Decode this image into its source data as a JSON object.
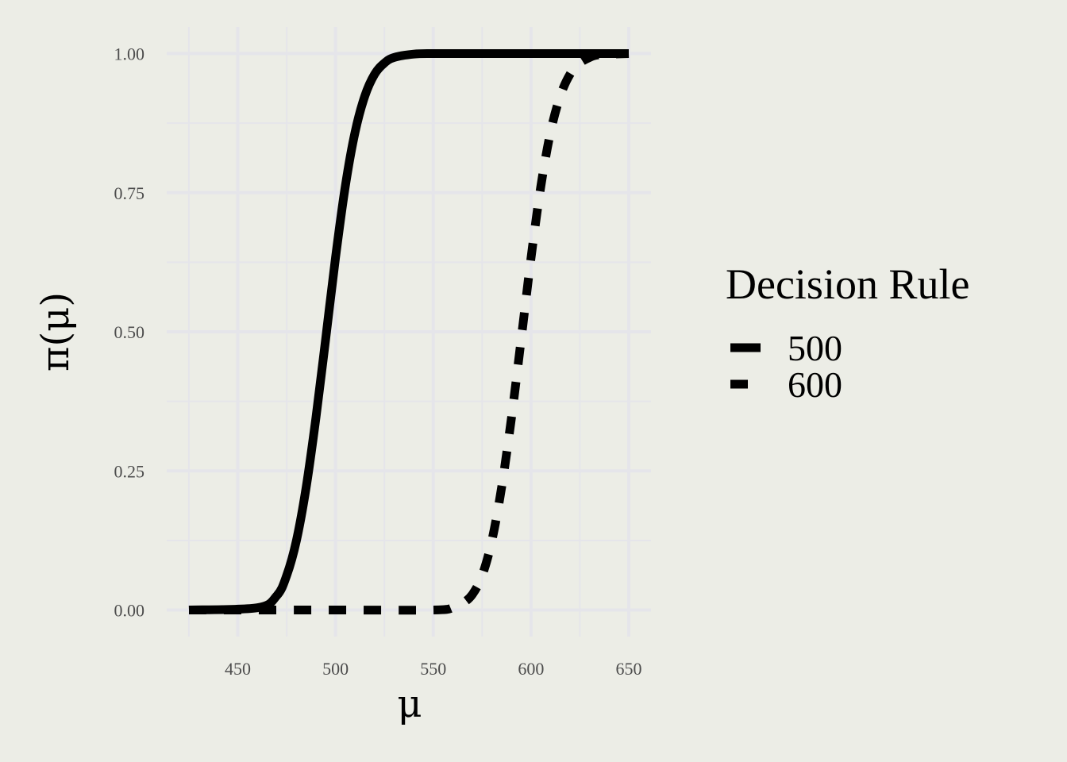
{
  "chart_data": {
    "type": "line",
    "title": "",
    "xlabel": "μ",
    "ylabel": "π(μ)",
    "xlim": [
      420,
      650
    ],
    "ylim": [
      0,
      1
    ],
    "x_ticks": [
      450,
      500,
      550,
      600,
      650
    ],
    "x_tick_labels": [
      "450",
      "500",
      "550",
      "600",
      "650"
    ],
    "y_ticks": [
      0,
      0.25,
      0.5,
      0.75,
      1
    ],
    "y_tick_labels": [
      "0.00",
      "0.25",
      "0.50",
      "0.75",
      "1.00"
    ],
    "grid": true,
    "legend": {
      "title": "Decision Rule",
      "position": "right",
      "entries": [
        "500",
        "600"
      ]
    },
    "series": [
      {
        "name": "500",
        "linetype": "solid",
        "color": "#000000",
        "x": [
          420,
          460,
          470,
          475,
          480,
          485,
          490,
          495,
          500,
          505,
          510,
          515,
          520,
          525,
          530,
          540,
          550,
          575,
          600,
          625,
          650
        ],
        "y": [
          0,
          0.004,
          0.026,
          0.062,
          0.125,
          0.221,
          0.346,
          0.488,
          0.633,
          0.761,
          0.859,
          0.924,
          0.963,
          0.983,
          0.993,
          0.999,
          1,
          1,
          1,
          1,
          1
        ]
      },
      {
        "name": "600",
        "linetype": "dashed",
        "color": "#000000",
        "x": [
          420,
          500,
          550,
          560,
          565,
          570,
          575,
          580,
          585,
          590,
          595,
          600,
          605,
          610,
          615,
          620,
          625,
          630,
          632,
          635,
          640,
          650
        ],
        "y": [
          0,
          0,
          0,
          0.004,
          0.012,
          0.028,
          0.062,
          0.125,
          0.221,
          0.346,
          0.488,
          0.633,
          0.761,
          0.859,
          0.924,
          0.963,
          0.983,
          0.993,
          0.996,
          0.998,
          0.999,
          1
        ]
      }
    ]
  }
}
